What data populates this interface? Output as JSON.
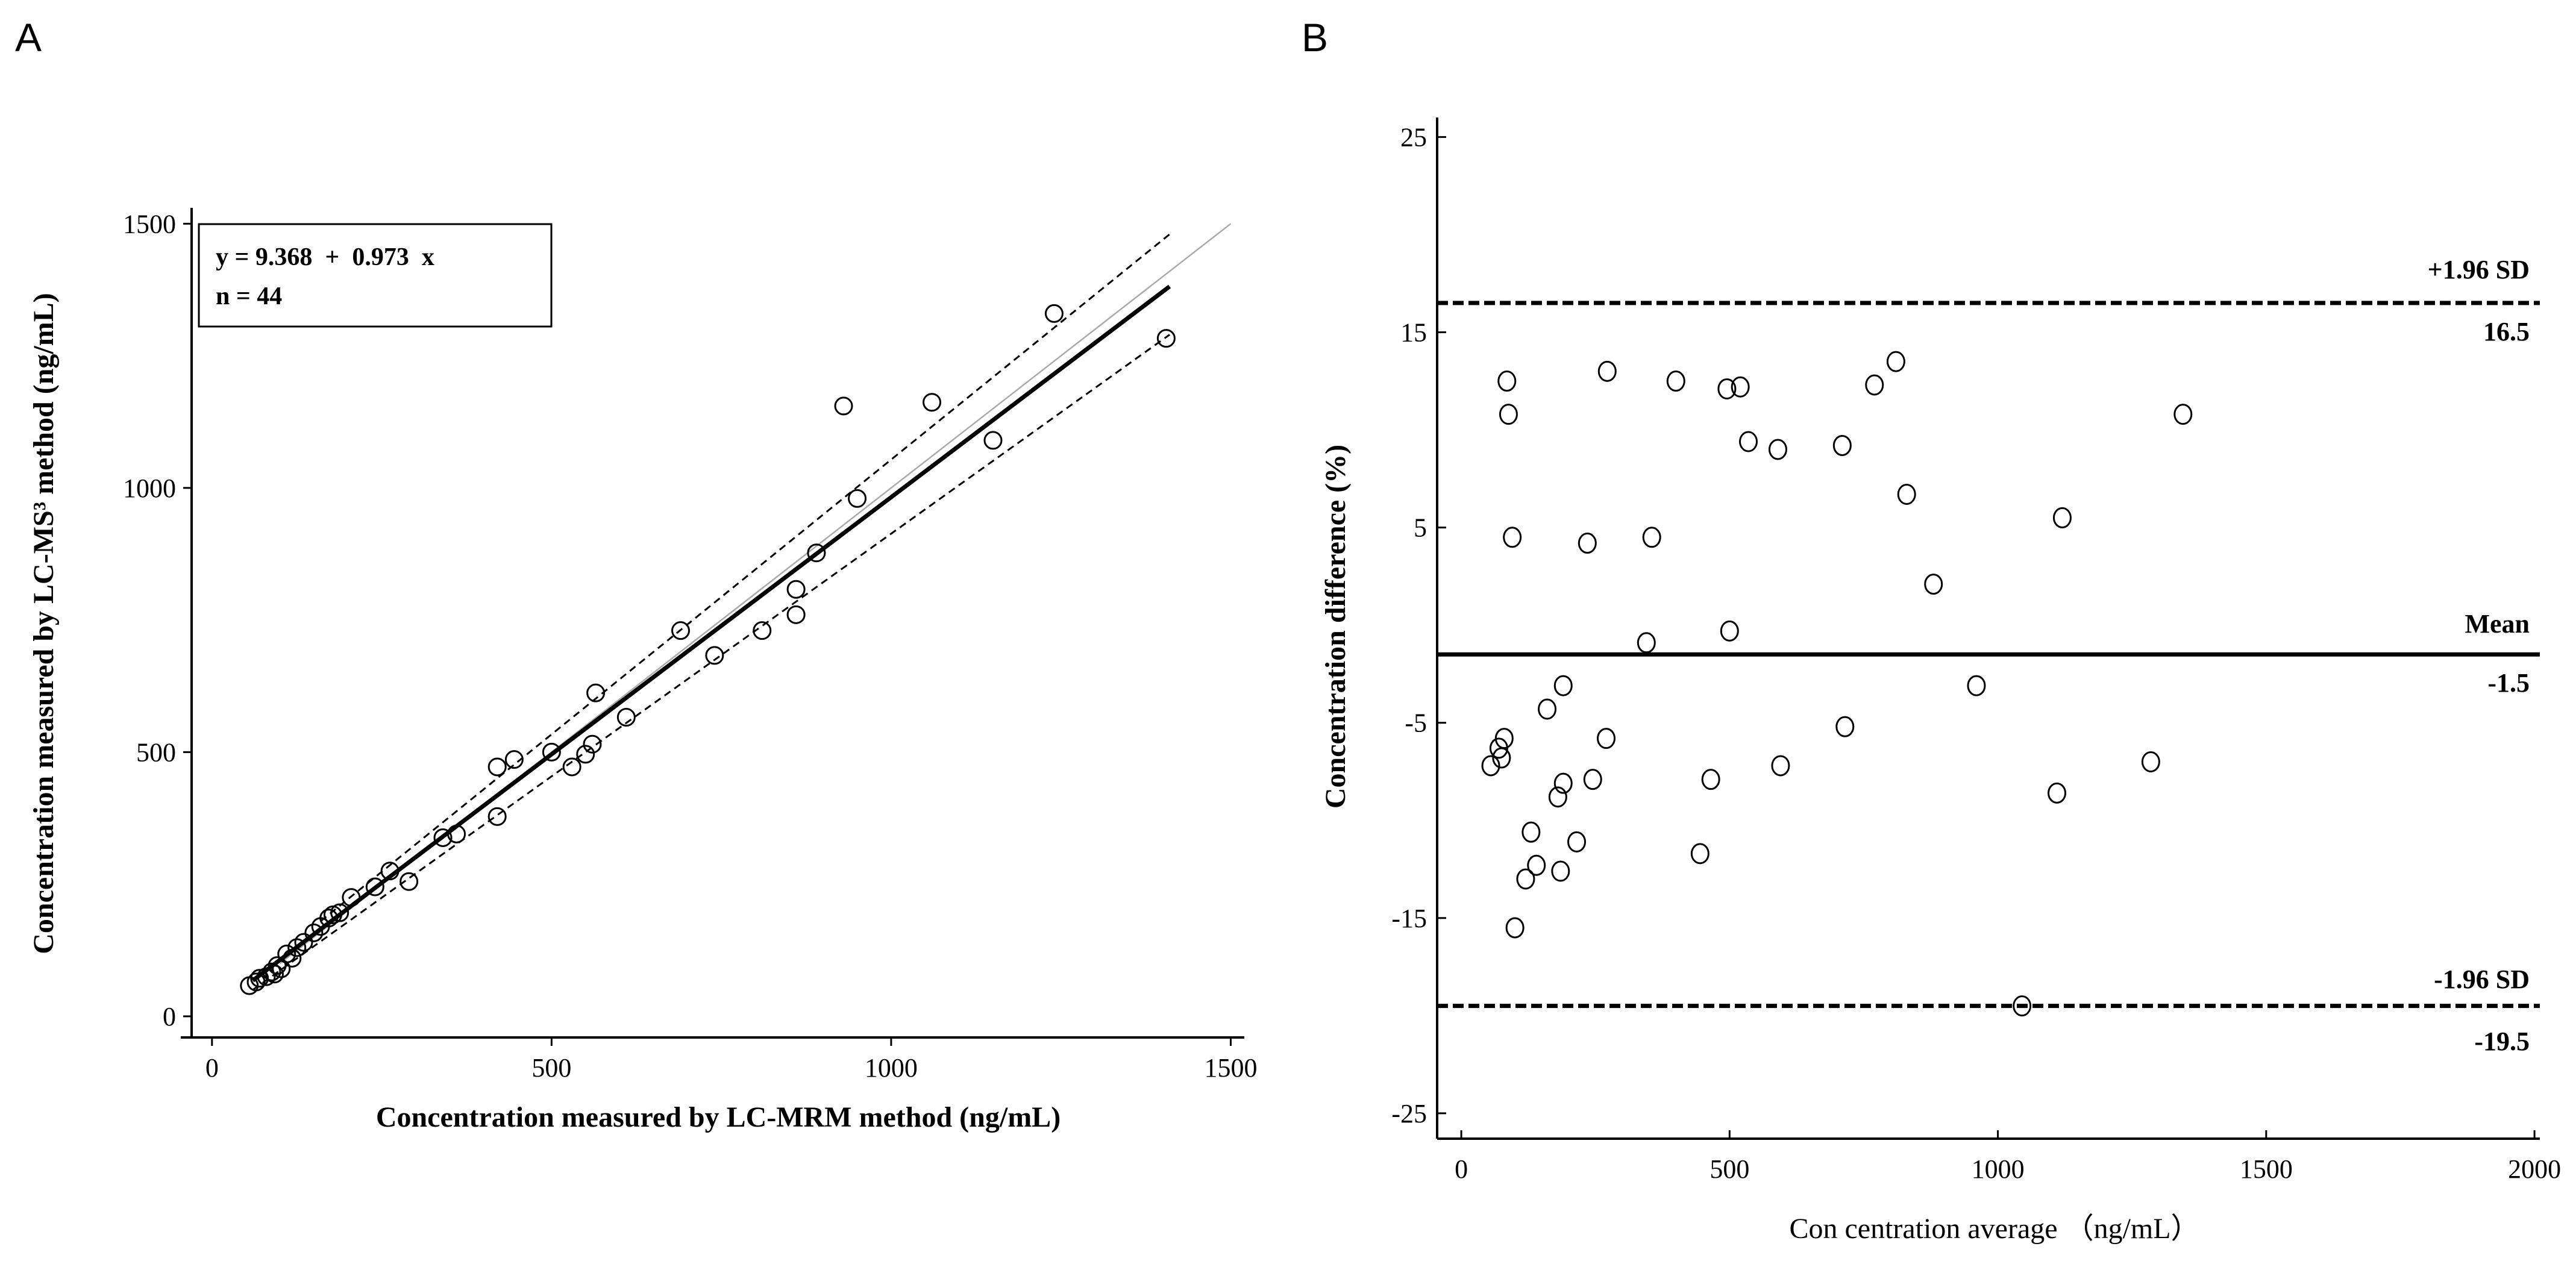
{
  "panels": [
    {
      "letter": "A",
      "chart_data": {
        "type": "scatter",
        "xlabel": "Concentration measured by LC-MRM method (ng/mL)",
        "ylabel": "Concentration measured by LC-MS³ method (ng/mL)",
        "xlim": [
          -30,
          1520
        ],
        "ylim": [
          -40,
          1530
        ],
        "xticks": [
          0,
          500,
          1000,
          1500
        ],
        "yticks": [
          0,
          500,
          1000,
          1500
        ],
        "regression": {
          "intercept": 9.368,
          "slope": 0.973,
          "x_range": [
            60,
            1410
          ]
        },
        "confidence_band": {
          "lower": {
            "x": [
              60,
              1410
            ],
            "y": [
              50,
              1290
            ]
          },
          "upper": {
            "x": [
              160,
              1410
            ],
            "y": [
              180,
              1480
            ]
          }
        },
        "identity_line": {
          "x": [
            100,
            1500
          ],
          "y": [
            100,
            1500
          ]
        },
        "annotation": {
          "equation": "y = 9.368  +  0.973  x",
          "n": "n = 44"
        },
        "points": [
          [
            55,
            58
          ],
          [
            65,
            65
          ],
          [
            70,
            72
          ],
          [
            80,
            75
          ],
          [
            88,
            84
          ],
          [
            92,
            80
          ],
          [
            96,
            96
          ],
          [
            102,
            90
          ],
          [
            110,
            118
          ],
          [
            118,
            110
          ],
          [
            125,
            130
          ],
          [
            135,
            140
          ],
          [
            150,
            158
          ],
          [
            160,
            170
          ],
          [
            172,
            186
          ],
          [
            178,
            192
          ],
          [
            188,
            196
          ],
          [
            205,
            225
          ],
          [
            240,
            245
          ],
          [
            262,
            275
          ],
          [
            290,
            255
          ],
          [
            340,
            338
          ],
          [
            360,
            345
          ],
          [
            420,
            378
          ],
          [
            420,
            472
          ],
          [
            445,
            486
          ],
          [
            500,
            500
          ],
          [
            530,
            472
          ],
          [
            550,
            496
          ],
          [
            560,
            515
          ],
          [
            565,
            612
          ],
          [
            610,
            566
          ],
          [
            690,
            730
          ],
          [
            740,
            683
          ],
          [
            810,
            730
          ],
          [
            860,
            760
          ],
          [
            860,
            808
          ],
          [
            890,
            877
          ],
          [
            930,
            1155
          ],
          [
            950,
            980
          ],
          [
            1060,
            1162
          ],
          [
            1150,
            1090
          ],
          [
            1240,
            1330
          ],
          [
            1405,
            1283
          ]
        ]
      }
    },
    {
      "letter": "B",
      "chart_data": {
        "type": "scatter",
        "xlabel": "Con centration average （ng/mL）",
        "ylabel": "Concentration difference (%)",
        "xlim": [
          -45,
          2010
        ],
        "ylim": [
          -26.3,
          26
        ],
        "xticks": [
          0,
          500,
          1000,
          1500,
          2000
        ],
        "yticks": [
          -25,
          -15,
          -5,
          5,
          15,
          25
        ],
        "reference_lines": [
          {
            "name": "+1.96 SD",
            "value": 16.5,
            "value_label": "16.5",
            "style": "dashed"
          },
          {
            "name": "Mean",
            "value": -1.5,
            "value_label": "-1.5",
            "style": "solid"
          },
          {
            "name": "-1.96 SD",
            "value": -19.5,
            "value_label": "-19.5",
            "style": "dashed"
          }
        ],
        "points": [
          [
            55,
            -7.2
          ],
          [
            70,
            -6.3
          ],
          [
            75,
            -6.8
          ],
          [
            80,
            -5.8
          ],
          [
            85,
            12.5
          ],
          [
            88,
            10.8
          ],
          [
            95,
            4.5
          ],
          [
            100,
            -15.5
          ],
          [
            120,
            -13
          ],
          [
            130,
            -10.6
          ],
          [
            140,
            -12.3
          ],
          [
            160,
            -4.3
          ],
          [
            180,
            -8.8
          ],
          [
            185,
            -12.6
          ],
          [
            190,
            -3.1
          ],
          [
            190,
            -8.1
          ],
          [
            215,
            -11.1
          ],
          [
            235,
            4.2
          ],
          [
            245,
            -7.9
          ],
          [
            270,
            -5.8
          ],
          [
            272,
            13
          ],
          [
            345,
            -0.9
          ],
          [
            355,
            4.5
          ],
          [
            400,
            12.5
          ],
          [
            445,
            -11.7
          ],
          [
            465,
            -7.9
          ],
          [
            495,
            12.1
          ],
          [
            500,
            -0.3
          ],
          [
            520,
            12.2
          ],
          [
            535,
            9.4
          ],
          [
            590,
            9
          ],
          [
            595,
            -7.2
          ],
          [
            710,
            9.2
          ],
          [
            715,
            -5.2
          ],
          [
            770,
            12.3
          ],
          [
            810,
            13.5
          ],
          [
            830,
            6.7
          ],
          [
            880,
            2.1
          ],
          [
            960,
            -3.1
          ],
          [
            1045,
            -19.5
          ],
          [
            1110,
            -8.6
          ],
          [
            1120,
            5.5
          ],
          [
            1285,
            -7
          ],
          [
            1345,
            10.8
          ]
        ]
      }
    }
  ]
}
